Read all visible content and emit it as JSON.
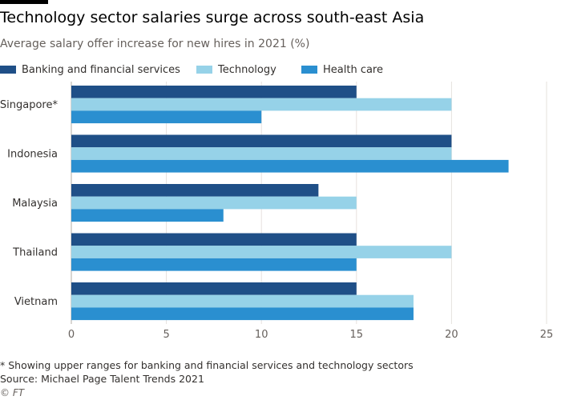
{
  "title": "Technology sector salaries surge across south-east Asia",
  "subtitle": "Average salary offer increase for new hires in 2021 (%)",
  "footnote": "* Showing upper ranges for banking and financial services and technology sectors",
  "source": "Source: Michael Page Talent Trends 2021",
  "credit": "© FT",
  "chart_data": {
    "type": "bar",
    "orientation": "horizontal",
    "categories": [
      "Singapore*",
      "Indonesia",
      "Malaysia",
      "Thailand",
      "Vietnam"
    ],
    "series": [
      {
        "name": "Banking and financial services",
        "color": "#1f4f87",
        "values": [
          15,
          20,
          13,
          15,
          15
        ]
      },
      {
        "name": "Technology",
        "color": "#96d2e8",
        "values": [
          20,
          20,
          15,
          20,
          18
        ]
      },
      {
        "name": "Health care",
        "color": "#2a8fd0",
        "values": [
          10,
          23,
          8,
          15,
          18
        ]
      }
    ],
    "xlim": [
      0,
      25
    ],
    "xticks": [
      0,
      5,
      10,
      15,
      20,
      25
    ],
    "grid": true,
    "legend_position": "top-left"
  }
}
